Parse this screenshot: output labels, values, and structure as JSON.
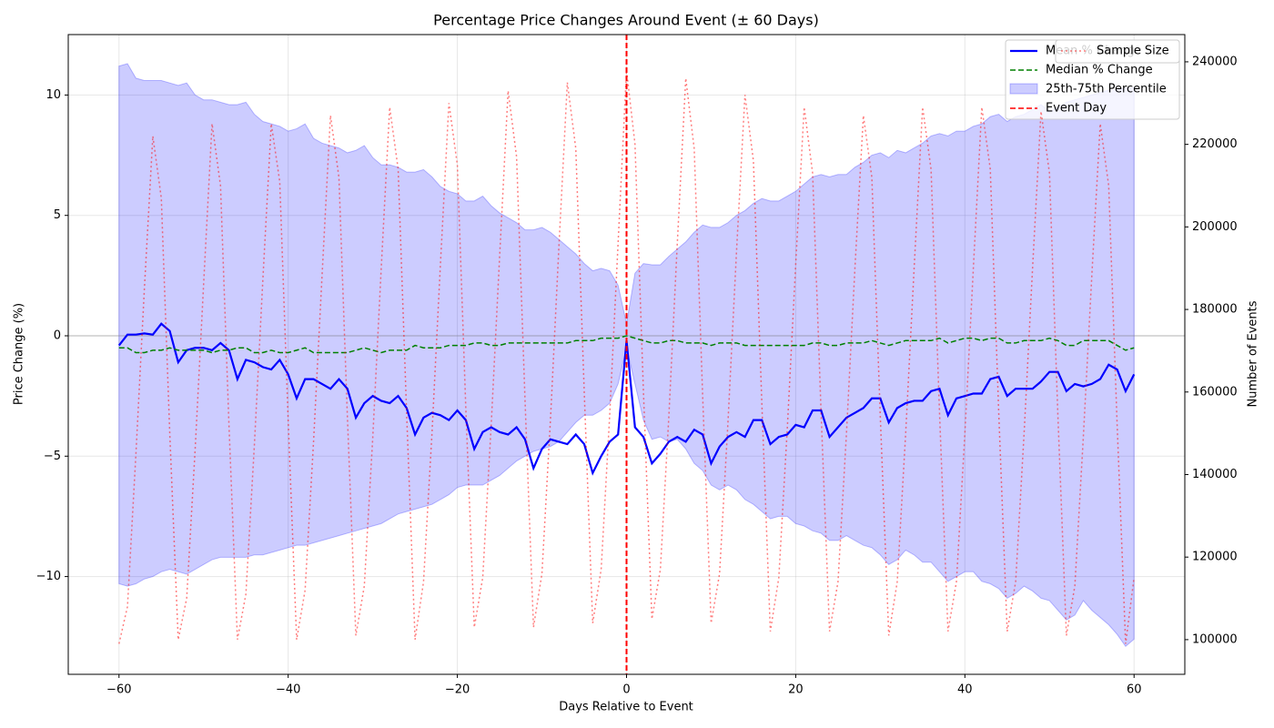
{
  "chart_data": {
    "type": "line",
    "title": "Percentage Price Changes Around Event (± 60 Days)",
    "xlabel": "Days Relative to Event",
    "ylabel": "Price Change (%)",
    "y2label": "Number of Events",
    "xlim": [
      -66,
      66
    ],
    "ylim": [
      -14.06,
      12.51
    ],
    "y2lim": [
      91600,
      246600
    ],
    "xticks": [
      {
        "value": -60,
        "label": "−60"
      },
      {
        "value": -40,
        "label": "−40"
      },
      {
        "value": -20,
        "label": "−20"
      },
      0,
      20,
      40,
      60
    ],
    "yticks": [
      {
        "value": -10,
        "label": "−10"
      },
      {
        "value": -5,
        "label": "−5"
      },
      0,
      5,
      10
    ],
    "y2ticks": [
      100000,
      120000,
      140000,
      160000,
      180000,
      200000,
      220000,
      240000
    ],
    "grid": true,
    "legend": "upper right",
    "x": [
      -60,
      -59,
      -58,
      -57,
      -56,
      -55,
      -54,
      -53,
      -52,
      -51,
      -50,
      -49,
      -48,
      -47,
      -46,
      -45,
      -44,
      -43,
      -42,
      -41,
      -40,
      -39,
      -38,
      -37,
      -36,
      -35,
      -34,
      -33,
      -32,
      -31,
      -30,
      -29,
      -28,
      -27,
      -26,
      -25,
      -24,
      -23,
      -22,
      -21,
      -20,
      -19,
      -18,
      -17,
      -16,
      -15,
      -14,
      -13,
      -12,
      -11,
      -10,
      -9,
      -8,
      -7,
      -6,
      -5,
      -4,
      -3,
      -2,
      -1,
      0,
      1,
      2,
      3,
      4,
      5,
      6,
      7,
      8,
      9,
      10,
      11,
      12,
      13,
      14,
      15,
      16,
      17,
      18,
      19,
      20,
      21,
      22,
      23,
      24,
      25,
      26,
      27,
      28,
      29,
      30,
      31,
      32,
      33,
      34,
      35,
      36,
      37,
      38,
      39,
      40,
      41,
      42,
      43,
      44,
      45,
      46,
      47,
      48,
      49,
      50,
      51,
      52,
      53,
      54,
      55,
      56,
      57,
      58,
      59,
      60
    ],
    "band": {
      "name": "25th-75th Percentile",
      "color": "#0000ff",
      "lower": [
        -10.3,
        -10.4,
        -10.3,
        -10.1,
        -10.0,
        -9.8,
        -9.7,
        -9.8,
        -9.9,
        -9.7,
        -9.5,
        -9.3,
        -9.2,
        -9.2,
        -9.2,
        -9.2,
        -9.1,
        -9.1,
        -9.0,
        -8.9,
        -8.8,
        -8.7,
        -8.7,
        -8.6,
        -8.5,
        -8.4,
        -8.3,
        -8.2,
        -8.1,
        -8.0,
        -7.9,
        -7.8,
        -7.6,
        -7.4,
        -7.3,
        -7.2,
        -7.1,
        -7.0,
        -6.8,
        -6.6,
        -6.3,
        -6.2,
        -6.2,
        -6.2,
        -6.0,
        -5.8,
        -5.5,
        -5.2,
        -5.0,
        -4.8,
        -4.7,
        -4.6,
        -4.4,
        -4.0,
        -3.6,
        -3.3,
        -3.3,
        -3.1,
        -2.8,
        -2.0,
        -0.5,
        -2.0,
        -3.5,
        -4.3,
        -4.2,
        -4.4,
        -4.3,
        -4.7,
        -5.3,
        -5.6,
        -6.2,
        -6.4,
        -6.2,
        -6.4,
        -6.8,
        -7.0,
        -7.3,
        -7.6,
        -7.5,
        -7.5,
        -7.8,
        -7.9,
        -8.1,
        -8.2,
        -8.5,
        -8.5,
        -8.3,
        -8.5,
        -8.7,
        -8.8,
        -9.1,
        -9.5,
        -9.3,
        -8.9,
        -9.1,
        -9.4,
        -9.4,
        -9.8,
        -10.2,
        -10.0,
        -9.8,
        -9.8,
        -10.2,
        -10.3,
        -10.5,
        -10.9,
        -10.7,
        -10.4,
        -10.6,
        -10.9,
        -11.0,
        -11.4,
        -11.8,
        -11.6,
        -11.0,
        -11.4,
        -11.7,
        -12.0,
        -12.4,
        -12.9,
        -12.6
      ],
      "upper": [
        11.2,
        11.3,
        10.7,
        10.6,
        10.6,
        10.6,
        10.5,
        10.4,
        10.5,
        10.0,
        9.8,
        9.8,
        9.7,
        9.6,
        9.6,
        9.7,
        9.2,
        8.9,
        8.8,
        8.7,
        8.5,
        8.6,
        8.8,
        8.2,
        8.0,
        7.9,
        7.8,
        7.6,
        7.7,
        7.9,
        7.4,
        7.1,
        7.1,
        7.0,
        6.8,
        6.8,
        6.9,
        6.6,
        6.2,
        6.0,
        5.9,
        5.6,
        5.6,
        5.8,
        5.4,
        5.1,
        4.9,
        4.7,
        4.4,
        4.4,
        4.5,
        4.3,
        4.0,
        3.7,
        3.4,
        3.0,
        2.7,
        2.8,
        2.7,
        2.1,
        0.5,
        2.6,
        3.0,
        2.95,
        2.95,
        3.3,
        3.6,
        3.9,
        4.3,
        4.6,
        4.5,
        4.5,
        4.7,
        5.0,
        5.2,
        5.5,
        5.7,
        5.6,
        5.6,
        5.8,
        6.0,
        6.3,
        6.6,
        6.7,
        6.6,
        6.7,
        6.7,
        7.0,
        7.2,
        7.5,
        7.6,
        7.4,
        7.7,
        7.6,
        7.8,
        8.0,
        8.3,
        8.4,
        8.3,
        8.5,
        8.5,
        8.7,
        8.8,
        9.1,
        9.2,
        8.9,
        9.1,
        9.2,
        9.4,
        9.6,
        9.3,
        9.5,
        9.7,
        9.8,
        9.9,
        10.0,
        10.1,
        10.2,
        10.2,
        10.3,
        10.3
      ]
    },
    "series": [
      {
        "name": "Mean % Change",
        "color": "#0000ff",
        "style": "solid",
        "values": [
          -0.4,
          0.05,
          0.05,
          0.1,
          0.05,
          0.5,
          0.2,
          -1.1,
          -0.6,
          -0.5,
          -0.5,
          -0.6,
          -0.3,
          -0.6,
          -1.8,
          -1.0,
          -1.1,
          -1.3,
          -1.4,
          -1.0,
          -1.6,
          -2.6,
          -1.8,
          -1.8,
          -2.0,
          -2.2,
          -1.8,
          -2.2,
          -3.4,
          -2.8,
          -2.5,
          -2.7,
          -2.8,
          -2.5,
          -3.0,
          -4.1,
          -3.4,
          -3.2,
          -3.3,
          -3.5,
          -3.1,
          -3.5,
          -4.7,
          -4.0,
          -3.8,
          -4.0,
          -4.1,
          -3.8,
          -4.3,
          -5.5,
          -4.7,
          -4.3,
          -4.4,
          -4.5,
          -4.1,
          -4.5,
          -5.7,
          -5.0,
          -4.4,
          -4.1,
          -0.2,
          -3.8,
          -4.2,
          -5.3,
          -4.9,
          -4.4,
          -4.2,
          -4.4,
          -3.9,
          -4.1,
          -5.3,
          -4.6,
          -4.2,
          -4.0,
          -4.2,
          -3.5,
          -3.5,
          -4.5,
          -4.2,
          -4.1,
          -3.7,
          -3.8,
          -3.1,
          -3.1,
          -4.2,
          -3.8,
          -3.4,
          -3.2,
          -3.0,
          -2.6,
          -2.6,
          -3.6,
          -3.0,
          -2.8,
          -2.7,
          -2.7,
          -2.3,
          -2.2,
          -3.3,
          -2.6,
          -2.5,
          -2.4,
          -2.4,
          -1.8,
          -1.7,
          -2.5,
          -2.2,
          -2.2,
          -2.2,
          -1.9,
          -1.5,
          -1.5,
          -2.3,
          -2.0,
          -2.1,
          -2.0,
          -1.8,
          -1.2,
          -1.4,
          -2.3,
          -1.6
        ]
      },
      {
        "name": "Median % Change",
        "color": "#008000",
        "style": "dashed",
        "values": [
          -0.5,
          -0.5,
          -0.7,
          -0.7,
          -0.6,
          -0.6,
          -0.5,
          -0.6,
          -0.6,
          -0.6,
          -0.6,
          -0.7,
          -0.6,
          -0.6,
          -0.5,
          -0.5,
          -0.7,
          -0.7,
          -0.6,
          -0.7,
          -0.7,
          -0.6,
          -0.5,
          -0.7,
          -0.7,
          -0.7,
          -0.7,
          -0.7,
          -0.6,
          -0.5,
          -0.6,
          -0.7,
          -0.6,
          -0.6,
          -0.6,
          -0.4,
          -0.5,
          -0.5,
          -0.5,
          -0.4,
          -0.4,
          -0.4,
          -0.3,
          -0.3,
          -0.4,
          -0.4,
          -0.3,
          -0.3,
          -0.3,
          -0.3,
          -0.3,
          -0.3,
          -0.3,
          -0.3,
          -0.2,
          -0.2,
          -0.2,
          -0.1,
          -0.1,
          -0.1,
          0.0,
          -0.1,
          -0.2,
          -0.3,
          -0.3,
          -0.2,
          -0.2,
          -0.3,
          -0.3,
          -0.3,
          -0.4,
          -0.3,
          -0.3,
          -0.3,
          -0.4,
          -0.4,
          -0.4,
          -0.4,
          -0.4,
          -0.4,
          -0.4,
          -0.4,
          -0.3,
          -0.3,
          -0.4,
          -0.4,
          -0.3,
          -0.3,
          -0.3,
          -0.2,
          -0.3,
          -0.4,
          -0.3,
          -0.2,
          -0.2,
          -0.2,
          -0.2,
          -0.1,
          -0.3,
          -0.2,
          -0.1,
          -0.1,
          -0.2,
          -0.1,
          -0.1,
          -0.3,
          -0.3,
          -0.2,
          -0.2,
          -0.2,
          -0.1,
          -0.2,
          -0.4,
          -0.4,
          -0.2,
          -0.2,
          -0.2,
          -0.2,
          -0.4,
          -0.6,
          -0.5
        ]
      },
      {
        "name": "Sample Size",
        "color": "#ff0000",
        "style": "dotted",
        "axis": "y2",
        "values": [
          99000,
          108000,
          145000,
          185000,
          222000,
          207000,
          150000,
          100000,
          110000,
          146000,
          186000,
          225000,
          210000,
          152000,
          100000,
          111000,
          147000,
          187000,
          225000,
          211000,
          153000,
          100000,
          112000,
          148000,
          188000,
          227000,
          212000,
          154000,
          101000,
          113000,
          149000,
          190000,
          229000,
          214000,
          155000,
          100000,
          114000,
          150000,
          191000,
          230000,
          215000,
          156000,
          103000,
          115000,
          152000,
          193000,
          233000,
          217000,
          158000,
          103000,
          116000,
          153000,
          195000,
          235000,
          219000,
          160000,
          104000,
          117000,
          154000,
          196000,
          238000,
          220000,
          160000,
          105000,
          117000,
          154000,
          196000,
          236000,
          219000,
          159000,
          104000,
          116000,
          153000,
          194000,
          232000,
          216000,
          157000,
          102000,
          115000,
          151000,
          191000,
          229000,
          213000,
          155000,
          102000,
          114000,
          150000,
          190000,
          227000,
          212000,
          154000,
          101000,
          114000,
          150000,
          190000,
          229000,
          214000,
          155000,
          102000,
          114000,
          150000,
          190000,
          229000,
          214000,
          155000,
          102000,
          114000,
          150000,
          190000,
          228000,
          213000,
          154000,
          101000,
          113000,
          149000,
          188000,
          225000,
          210000,
          152000,
          99000,
          115000
        ]
      }
    ],
    "reference_line": 0,
    "event_line": {
      "name": "Event Day",
      "x": 0,
      "color": "#ff0000"
    }
  }
}
